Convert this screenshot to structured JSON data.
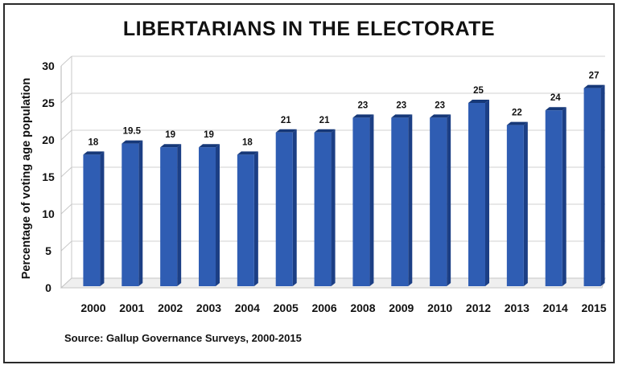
{
  "chart_data": {
    "type": "bar",
    "title": "LIBERTARIANS IN THE ELECTORATE",
    "xlabel": "",
    "ylabel": "Percentage of voting age population",
    "source": "Source: Gallup Governance Surveys, 2000-2015",
    "categories": [
      "2000",
      "2001",
      "2002",
      "2003",
      "2004",
      "2005",
      "2006",
      "2008",
      "2009",
      "2010",
      "2012",
      "2013",
      "2014",
      "2015"
    ],
    "values": [
      18,
      19.5,
      19,
      19,
      18,
      21,
      21,
      23,
      23,
      23,
      25,
      22,
      24,
      27
    ],
    "value_labels": [
      "18",
      "19.5",
      "19",
      "19",
      "18",
      "21",
      "21",
      "23",
      "23",
      "23",
      "25",
      "22",
      "24",
      "27"
    ],
    "ylim": [
      0,
      30
    ],
    "yticks": [
      "0",
      "5",
      "10",
      "15",
      "20",
      "25",
      "30"
    ],
    "grid": true,
    "bar_color": "#2f5db3",
    "bar_side_color": "#1c3f85",
    "bar_top_color": "#163878"
  }
}
